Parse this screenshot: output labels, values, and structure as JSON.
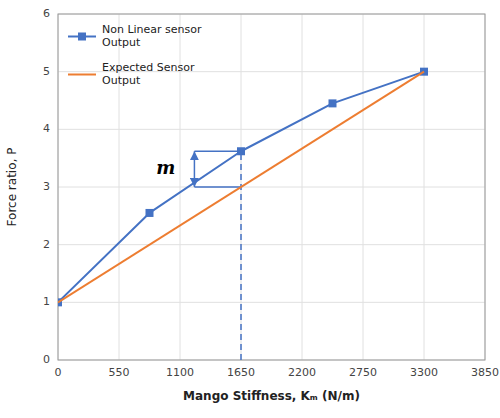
{
  "chart_data": {
    "type": "line",
    "xlabel": "Mango Stiffness, Kₘ (N/m)",
    "ylabel": "Force ratio, P",
    "xlim": [
      0,
      3850
    ],
    "ylim": [
      0,
      6
    ],
    "xticks": [
      0,
      550,
      1100,
      1650,
      2200,
      2750,
      3300,
      3850
    ],
    "yticks": [
      0,
      1,
      2,
      3,
      4,
      5,
      6
    ],
    "grid": true,
    "legend": "upper left",
    "series": [
      {
        "name": "Non Linear sensor\nOutput",
        "color": "#4472C4",
        "marker": "square",
        "line_style": "solid",
        "x": [
          0,
          825,
          1650,
          2475,
          3300
        ],
        "values": [
          1.0,
          2.55,
          3.62,
          4.45,
          5.0
        ]
      },
      {
        "name": "Expected Sensor\nOutput",
        "color": "#ED7D31",
        "line_style": "solid",
        "x": [
          0,
          3300
        ],
        "values": [
          1.0,
          5.0
        ]
      }
    ],
    "reference_lines": [
      {
        "x": [
          1650,
          1650
        ],
        "y": [
          0,
          3.62
        ],
        "line_style": "dashed",
        "color": "#4472C4"
      },
      {
        "x": [
          1230,
          1650
        ],
        "y": [
          3.62,
          3.62
        ],
        "line_style": "solid",
        "color": "#4472C4"
      },
      {
        "x": [
          1230,
          1650
        ],
        "y": [
          3.0,
          3.0
        ],
        "line_style": "solid",
        "color": "#4472C4"
      }
    ],
    "arrows": [
      {
        "x": 1230,
        "y": [
          3.0,
          3.62
        ],
        "color": "#4472C4"
      }
    ],
    "annotations": [
      {
        "text": "m",
        "x": 1085,
        "y": 3.32
      }
    ]
  }
}
